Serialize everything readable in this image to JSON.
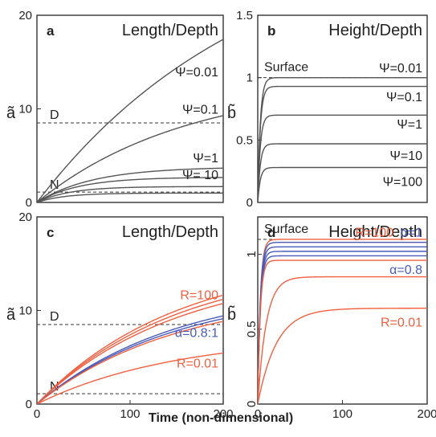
{
  "xlabel": "Time (non-dimensional)",
  "chart_data": [
    {
      "id": "a",
      "type": "line",
      "letter": "a",
      "title": "Length/Depth",
      "ylabel": "ã",
      "xlim": [
        0,
        200
      ],
      "ylim": [
        0,
        20
      ],
      "xticks": [],
      "yticks": [
        0,
        10,
        20
      ],
      "hlines": [
        {
          "y": 8.5,
          "label": "D"
        },
        {
          "y": 1.1,
          "label": "N"
        }
      ],
      "series": [
        {
          "name": "Ψ=0.01",
          "color": "#555555",
          "asym": 30.0,
          "tau": 230,
          "label_y": 14.0
        },
        {
          "name": "Ψ=0.1",
          "color": "#555555",
          "asym": 13.0,
          "tau": 160,
          "label_y": 10.0
        },
        {
          "name": "Ψ=1",
          "color": "#555555",
          "asym": 3.8,
          "tau": 60,
          "label_y": 4.8
        },
        {
          "name": "Ψ= 10",
          "color": "#555555",
          "asym": 2.7,
          "tau": 45,
          "label_y": 3.0
        },
        {
          "name": "",
          "color": "#555555",
          "asym": 1.7,
          "tau": 35,
          "label_y": null
        },
        {
          "name": "",
          "color": "#555555",
          "asym": 1.0,
          "tau": 30,
          "label_y": null
        }
      ]
    },
    {
      "id": "b",
      "type": "line",
      "letter": "b",
      "title": "Height/Depth",
      "ylabel": "b̃",
      "xlim": [
        0,
        200
      ],
      "ylim": [
        0,
        1.5
      ],
      "xticks": [],
      "yticks": [
        0,
        0.5,
        1,
        1.5
      ],
      "hlines": [
        {
          "y": 1.0,
          "label": "Surface"
        }
      ],
      "series": [
        {
          "name": "Ψ=0.01",
          "color": "#555555",
          "asym": 1.0,
          "tau": 3,
          "label_y": 1.08
        },
        {
          "name": "Ψ=0.1",
          "color": "#555555",
          "asym": 0.93,
          "tau": 3,
          "label_y": 0.85
        },
        {
          "name": "Ψ=1",
          "color": "#555555",
          "asym": 0.7,
          "tau": 3,
          "label_y": 0.63
        },
        {
          "name": "Ψ=10",
          "color": "#555555",
          "asym": 0.47,
          "tau": 3,
          "label_y": 0.38
        },
        {
          "name": "Ψ=100",
          "color": "#555555",
          "asym": 0.28,
          "tau": 3,
          "label_y": 0.17
        }
      ]
    },
    {
      "id": "c",
      "type": "line",
      "letter": "c",
      "title": "Length/Depth",
      "ylabel": "ã",
      "xlim": [
        0,
        200
      ],
      "ylim": [
        0,
        20
      ],
      "xticks": [
        0,
        100,
        200
      ],
      "yticks": [
        0,
        10,
        20
      ],
      "hlines": [
        {
          "y": 8.5,
          "label": "D"
        },
        {
          "y": 1.1,
          "label": "N"
        }
      ],
      "series": [
        {
          "name": "R=100",
          "color": "#f06040",
          "asym": 15.8,
          "tau": 150,
          "label_y": 11.7
        },
        {
          "name": "",
          "color": "#f06040",
          "asym": 15.2,
          "tau": 150,
          "label_y": null
        },
        {
          "name": "",
          "color": "#f06040",
          "asym": 14.6,
          "tau": 150,
          "label_y": null
        },
        {
          "name": "α=0.8:1",
          "color": "#4a5bb8",
          "asym": 12.8,
          "tau": 150,
          "label_y": 7.7
        },
        {
          "name": "",
          "color": "#4a5bb8",
          "asym": 12.4,
          "tau": 150,
          "label_y": null
        },
        {
          "name": "",
          "color": "#f06040",
          "asym": 12.0,
          "tau": 150,
          "label_y": null
        },
        {
          "name": "R=0.01",
          "color": "#f06040",
          "asym": 7.4,
          "tau": 150,
          "label_y": 4.4
        }
      ]
    },
    {
      "id": "d",
      "type": "line",
      "letter": "d",
      "title": "Height/Depth",
      "ylabel": "b̃",
      "xlim": [
        0,
        200
      ],
      "ylim": [
        0,
        1.25
      ],
      "xticks": [
        0,
        100,
        200
      ],
      "yticks": [
        0,
        0.5,
        1
      ],
      "hlines": [
        {
          "y": 1.1,
          "label": "Surface"
        }
      ],
      "series": [
        {
          "name": "R=100",
          "color": "#f06040",
          "asym": 1.1,
          "tau": 3,
          "label_y": 1.15
        },
        {
          "name": "α=1",
          "color": "#4a5bb8",
          "asym": 1.08,
          "tau": 3,
          "label_y": 1.15
        },
        {
          "name": "",
          "color": "#4a5bb8",
          "asym": 1.05,
          "tau": 3,
          "label_y": null
        },
        {
          "name": "",
          "color": "#4a5bb8",
          "asym": 1.02,
          "tau": 3,
          "label_y": null
        },
        {
          "name": "α=0.8",
          "color": "#4a5bb8",
          "asym": 0.99,
          "tau": 3,
          "label_y": 0.9
        },
        {
          "name": "",
          "color": "#f06040",
          "asym": 0.96,
          "tau": 3,
          "label_y": null
        },
        {
          "name": "",
          "color": "#f06040",
          "asym": 0.85,
          "tau": 10,
          "label_y": null
        },
        {
          "name": "R=0.01",
          "color": "#f06040",
          "asym": 0.64,
          "tau": 22,
          "label_y": 0.55
        }
      ]
    }
  ]
}
